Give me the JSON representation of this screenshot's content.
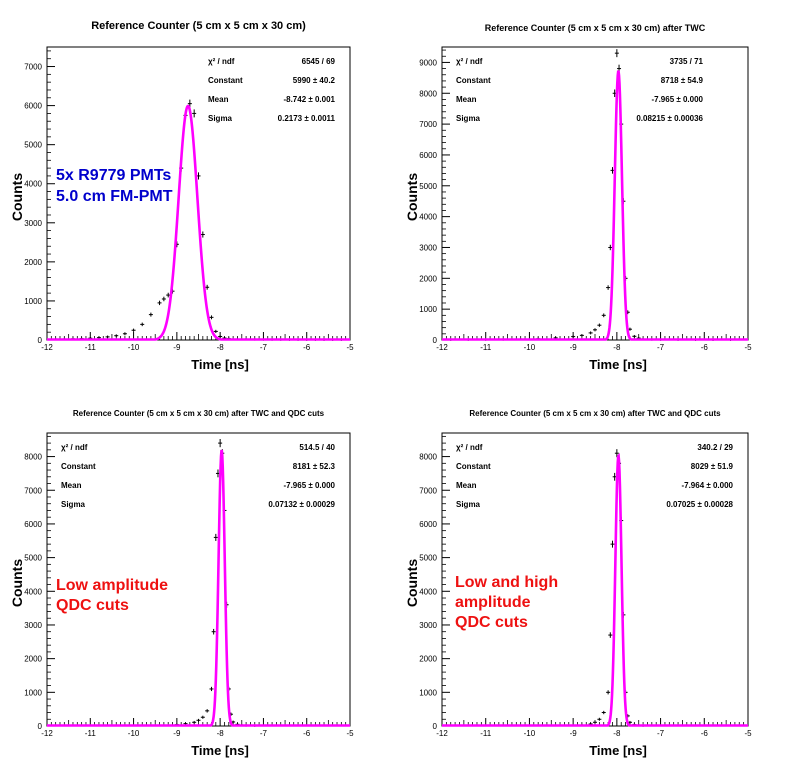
{
  "chart_data": [
    {
      "type": "scatter",
      "title": "Reference Counter (5 cm x 5 cm x 30 cm)",
      "xlabel": "Time [ns]",
      "ylabel": "Counts",
      "xlim": [
        -12,
        -5
      ],
      "ylim": [
        0,
        7500
      ],
      "xticks": [
        -12,
        -11,
        -10,
        -9,
        -8,
        -7,
        -6,
        -5
      ],
      "yticks": [
        0,
        1000,
        2000,
        3000,
        4000,
        5000,
        6000,
        7000
      ],
      "stats": [
        {
          "label": "χ² / ndf",
          "value": "6545 / 69"
        },
        {
          "label": "Constant",
          "value": "5990 ± 40.2"
        },
        {
          "label": "Mean",
          "value": "-8.742 ± 0.001"
        },
        {
          "label": "Sigma",
          "value": "0.2173 ± 0.0011"
        }
      ],
      "annotation": [
        "5x R9779 PMTs",
        "5.0 cm FM-PMT"
      ],
      "annotation_color": "#0000cc",
      "fit": {
        "constant": 5990,
        "mean": -8.742,
        "sigma": 0.2173
      },
      "x": [
        -11.8,
        -11.6,
        -11.4,
        -11.2,
        -11.0,
        -10.8,
        -10.6,
        -10.4,
        -10.2,
        -10.0,
        -9.8,
        -9.6,
        -9.4,
        -9.3,
        -9.2,
        -9.1,
        -9.0,
        -8.9,
        -8.8,
        -8.7,
        -8.6,
        -8.5,
        -8.4,
        -8.3,
        -8.2,
        -8.1,
        -8.0,
        -7.9,
        -7.8,
        -7.6,
        -7.4,
        -7.2,
        -7.0,
        -6.8,
        -6.6,
        -6.4,
        -6.2,
        -6.0,
        -5.8,
        -5.6,
        -5.4,
        -5.2
      ],
      "y": [
        20,
        25,
        30,
        35,
        45,
        60,
        80,
        110,
        160,
        250,
        400,
        650,
        950,
        1050,
        1150,
        1250,
        2450,
        4400,
        5750,
        6050,
        5800,
        4200,
        2700,
        1350,
        580,
        220,
        90,
        50,
        35,
        25,
        20,
        15,
        12,
        10,
        8,
        7,
        6,
        5,
        5,
        4,
        4,
        3
      ],
      "series_color": "#ff00ff"
    },
    {
      "type": "scatter",
      "title": "Reference Counter (5 cm x 5 cm x 30 cm) after TWC",
      "xlabel": "Time [ns]",
      "ylabel": "Counts",
      "xlim": [
        -12,
        -5
      ],
      "ylim": [
        0,
        9500
      ],
      "xticks": [
        -12,
        -11,
        -10,
        -9,
        -8,
        -7,
        -6,
        -5
      ],
      "yticks": [
        0,
        1000,
        2000,
        3000,
        4000,
        5000,
        6000,
        7000,
        8000,
        9000
      ],
      "stats": [
        {
          "label": "χ² / ndf",
          "value": "3735 / 71"
        },
        {
          "label": "Constant",
          "value": "8718 ± 54.9"
        },
        {
          "label": "Mean",
          "value": "-7.965 ± 0.000"
        },
        {
          "label": "Sigma",
          "value": "0.08215 ± 0.00036"
        }
      ],
      "annotation": [],
      "annotation_color": "#000000",
      "fit": {
        "constant": 8718,
        "mean": -7.965,
        "sigma": 0.08215
      },
      "x": [
        -11.8,
        -11.4,
        -11.0,
        -10.6,
        -10.2,
        -9.8,
        -9.4,
        -9.0,
        -8.8,
        -8.6,
        -8.5,
        -8.4,
        -8.3,
        -8.2,
        -8.15,
        -8.1,
        -8.05,
        -8.0,
        -7.95,
        -7.9,
        -7.85,
        -7.8,
        -7.75,
        -7.7,
        -7.6,
        -7.5,
        -7.4,
        -7.2,
        -7.0,
        -6.6,
        -6.2,
        -5.8,
        -5.4
      ],
      "y": [
        5,
        8,
        10,
        15,
        25,
        40,
        70,
        110,
        150,
        230,
        330,
        480,
        800,
        1700,
        3000,
        5500,
        8000,
        9300,
        8800,
        7000,
        4500,
        2000,
        900,
        350,
        120,
        60,
        30,
        15,
        10,
        6,
        4,
        3,
        2
      ],
      "series_color": "#ff00ff"
    },
    {
      "type": "scatter",
      "title": "Reference Counter (5 cm x 5 cm x 30 cm) after TWC and QDC cuts",
      "xlabel": "Time [ns]",
      "ylabel": "Counts",
      "xlim": [
        -12,
        -5
      ],
      "ylim": [
        0,
        8700
      ],
      "xticks": [
        -12,
        -11,
        -10,
        -9,
        -8,
        -7,
        -6,
        -5
      ],
      "yticks": [
        0,
        1000,
        2000,
        3000,
        4000,
        5000,
        6000,
        7000,
        8000
      ],
      "stats": [
        {
          "label": "χ² / ndf",
          "value": "514.5 / 40"
        },
        {
          "label": "Constant",
          "value": "8181 ± 52.3"
        },
        {
          "label": "Mean",
          "value": "-7.965 ± 0.000"
        },
        {
          "label": "Sigma",
          "value": "0.07132 ± 0.00029"
        }
      ],
      "annotation": [
        "Low amplitude",
        "QDC cuts"
      ],
      "annotation_color": "#ee1111",
      "fit": {
        "constant": 8181,
        "mean": -7.965,
        "sigma": 0.07132
      },
      "x": [
        -9.0,
        -8.8,
        -8.6,
        -8.5,
        -8.4,
        -8.3,
        -8.2,
        -8.15,
        -8.1,
        -8.05,
        -8.0,
        -7.95,
        -7.9,
        -7.85,
        -7.8,
        -7.75,
        -7.7,
        -7.6,
        -7.5,
        -7.4,
        -7.2
      ],
      "y": [
        40,
        70,
        110,
        170,
        260,
        450,
        1100,
        2800,
        5600,
        7500,
        8400,
        8100,
        6400,
        3600,
        1100,
        350,
        120,
        50,
        25,
        15,
        8
      ],
      "series_color": "#ff00ff"
    },
    {
      "type": "scatter",
      "title": "Reference Counter (5 cm x 5 cm x 30 cm) after TWC and QDC cuts",
      "xlabel": "Time [ns]",
      "ylabel": "Counts",
      "xlim": [
        -12,
        -5
      ],
      "ylim": [
        0,
        8700
      ],
      "xticks": [
        -12,
        -11,
        -10,
        -9,
        -8,
        -7,
        -6,
        -5
      ],
      "yticks": [
        0,
        1000,
        2000,
        3000,
        4000,
        5000,
        6000,
        7000,
        8000
      ],
      "stats": [
        {
          "label": "χ² / ndf",
          "value": "340.2 / 29"
        },
        {
          "label": "Constant",
          "value": "8029 ± 51.9"
        },
        {
          "label": "Mean",
          "value": "-7.964 ± 0.000"
        },
        {
          "label": "Sigma",
          "value": "0.07025 ± 0.00028"
        }
      ],
      "annotation": [
        "Low and high",
        "amplitude",
        "QDC cuts"
      ],
      "annotation_color": "#ee1111",
      "fit": {
        "constant": 8029,
        "mean": -7.964,
        "sigma": 0.07025
      },
      "x": [
        -8.8,
        -8.6,
        -8.5,
        -8.4,
        -8.3,
        -8.2,
        -8.15,
        -8.1,
        -8.05,
        -8.0,
        -7.95,
        -7.9,
        -7.85,
        -7.8,
        -7.75,
        -7.7,
        -7.6,
        -7.5,
        -7.4
      ],
      "y": [
        30,
        60,
        110,
        200,
        400,
        1000,
        2700,
        5400,
        7400,
        8100,
        7800,
        6100,
        3300,
        1000,
        300,
        110,
        40,
        20,
        10
      ],
      "series_color": "#ff00ff"
    }
  ]
}
